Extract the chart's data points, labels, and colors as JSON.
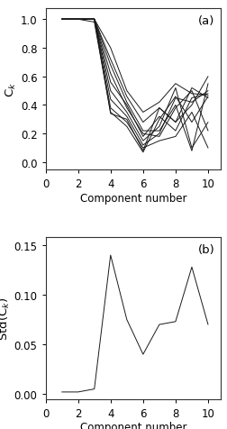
{
  "panel_a": {
    "x": [
      1,
      2,
      3,
      4,
      5,
      6,
      7,
      8,
      9,
      10
    ],
    "lines": [
      [
        1.0,
        1.0,
        1.0,
        0.8,
        0.5,
        0.35,
        0.42,
        0.55,
        0.48,
        0.47
      ],
      [
        1.0,
        1.0,
        1.0,
        0.72,
        0.46,
        0.28,
        0.38,
        0.28,
        0.52,
        0.45
      ],
      [
        1.0,
        1.0,
        1.0,
        0.68,
        0.42,
        0.22,
        0.22,
        0.4,
        0.08,
        0.55
      ],
      [
        1.0,
        1.0,
        1.0,
        0.62,
        0.38,
        0.2,
        0.18,
        0.38,
        0.5,
        0.22
      ],
      [
        1.0,
        1.0,
        1.0,
        0.56,
        0.4,
        0.18,
        0.32,
        0.22,
        0.45,
        0.48
      ],
      [
        1.0,
        1.0,
        1.0,
        0.5,
        0.35,
        0.15,
        0.25,
        0.52,
        0.1,
        0.28
      ],
      [
        1.0,
        1.0,
        1.0,
        0.44,
        0.32,
        0.12,
        0.2,
        0.45,
        0.42,
        0.5
      ],
      [
        1.0,
        1.0,
        1.0,
        0.38,
        0.28,
        0.1,
        0.15,
        0.18,
        0.35,
        0.1
      ],
      [
        1.0,
        1.0,
        1.0,
        0.34,
        0.3,
        0.08,
        0.38,
        0.28,
        0.4,
        0.6
      ],
      [
        1.0,
        1.0,
        0.98,
        0.35,
        0.25,
        0.07,
        0.3,
        0.46,
        0.28,
        0.46
      ]
    ],
    "ylabel": "C$_k$",
    "xlabel": "Component number",
    "label": "(a)",
    "ylim": [
      -0.05,
      1.08
    ],
    "xlim": [
      0,
      10.8
    ],
    "yticks": [
      0.0,
      0.2,
      0.4,
      0.6,
      0.8,
      1.0
    ],
    "xticks": [
      0,
      2,
      4,
      6,
      8,
      10
    ]
  },
  "panel_b": {
    "x": [
      1,
      2,
      3,
      4,
      5,
      6,
      7,
      8,
      9,
      10
    ],
    "y": [
      0.002,
      0.002,
      0.005,
      0.14,
      0.075,
      0.04,
      0.07,
      0.073,
      0.128,
      0.07
    ],
    "ylabel": "Std(C$_k$)",
    "xlabel": "Component number",
    "label": "(b)",
    "ylim": [
      -0.005,
      0.158
    ],
    "xlim": [
      0,
      10.8
    ],
    "yticks": [
      0.0,
      0.05,
      0.1,
      0.15
    ],
    "xticks": [
      0,
      2,
      4,
      6,
      8,
      10
    ]
  },
  "fig_bg": "#ffffff",
  "line_color": "#1a1a1a",
  "font_size": 8.5,
  "label_font_size": 9.5
}
